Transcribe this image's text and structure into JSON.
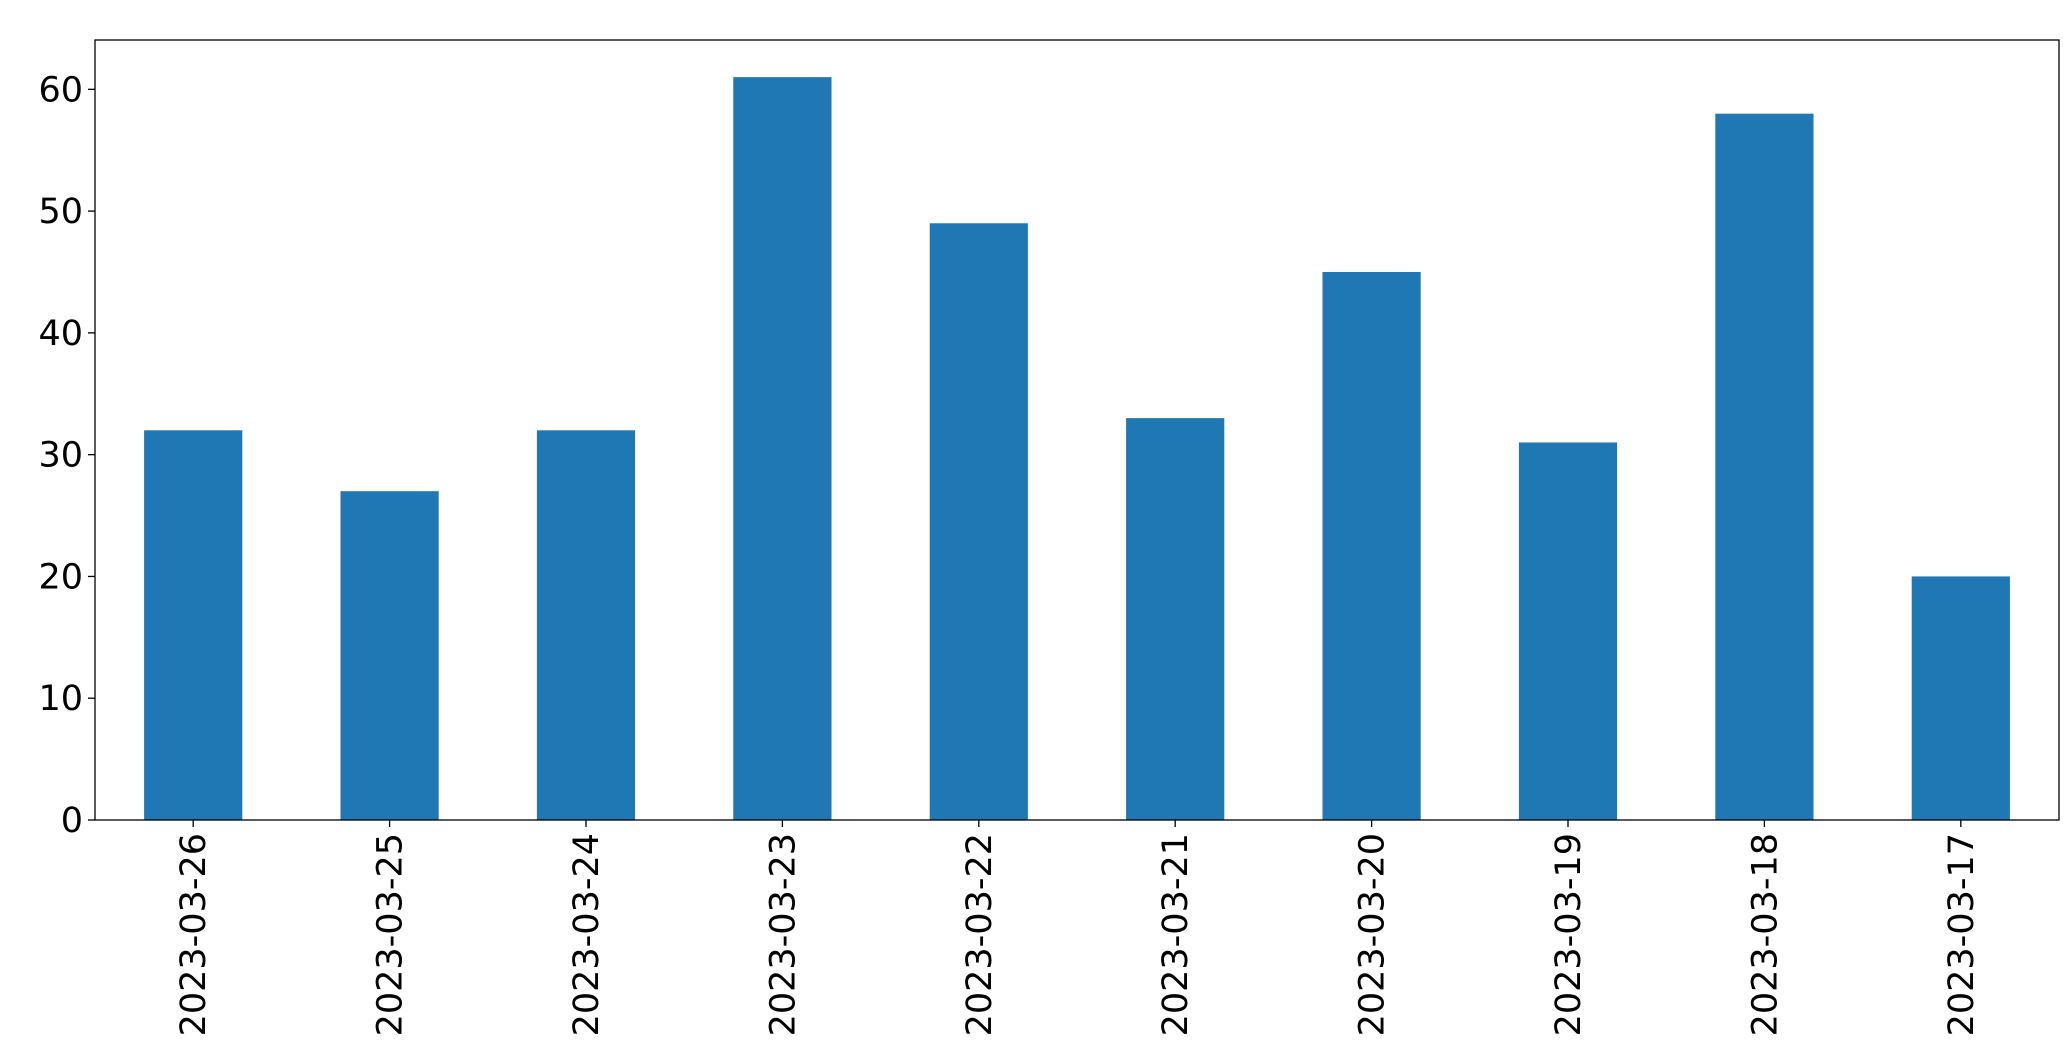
{
  "chart_data": {
    "type": "bar",
    "categories": [
      "2023-03-26",
      "2023-03-25",
      "2023-03-24",
      "2023-03-23",
      "2023-03-22",
      "2023-03-21",
      "2023-03-20",
      "2023-03-19",
      "2023-03-18",
      "2023-03-17"
    ],
    "values": [
      32,
      27,
      32,
      61,
      49,
      33,
      45,
      31,
      58,
      20
    ],
    "color": "#1f77b4",
    "ylim": [
      0,
      64.05
    ],
    "yticks": [
      0,
      10,
      20,
      30,
      40,
      50,
      60
    ],
    "grid": false
  }
}
